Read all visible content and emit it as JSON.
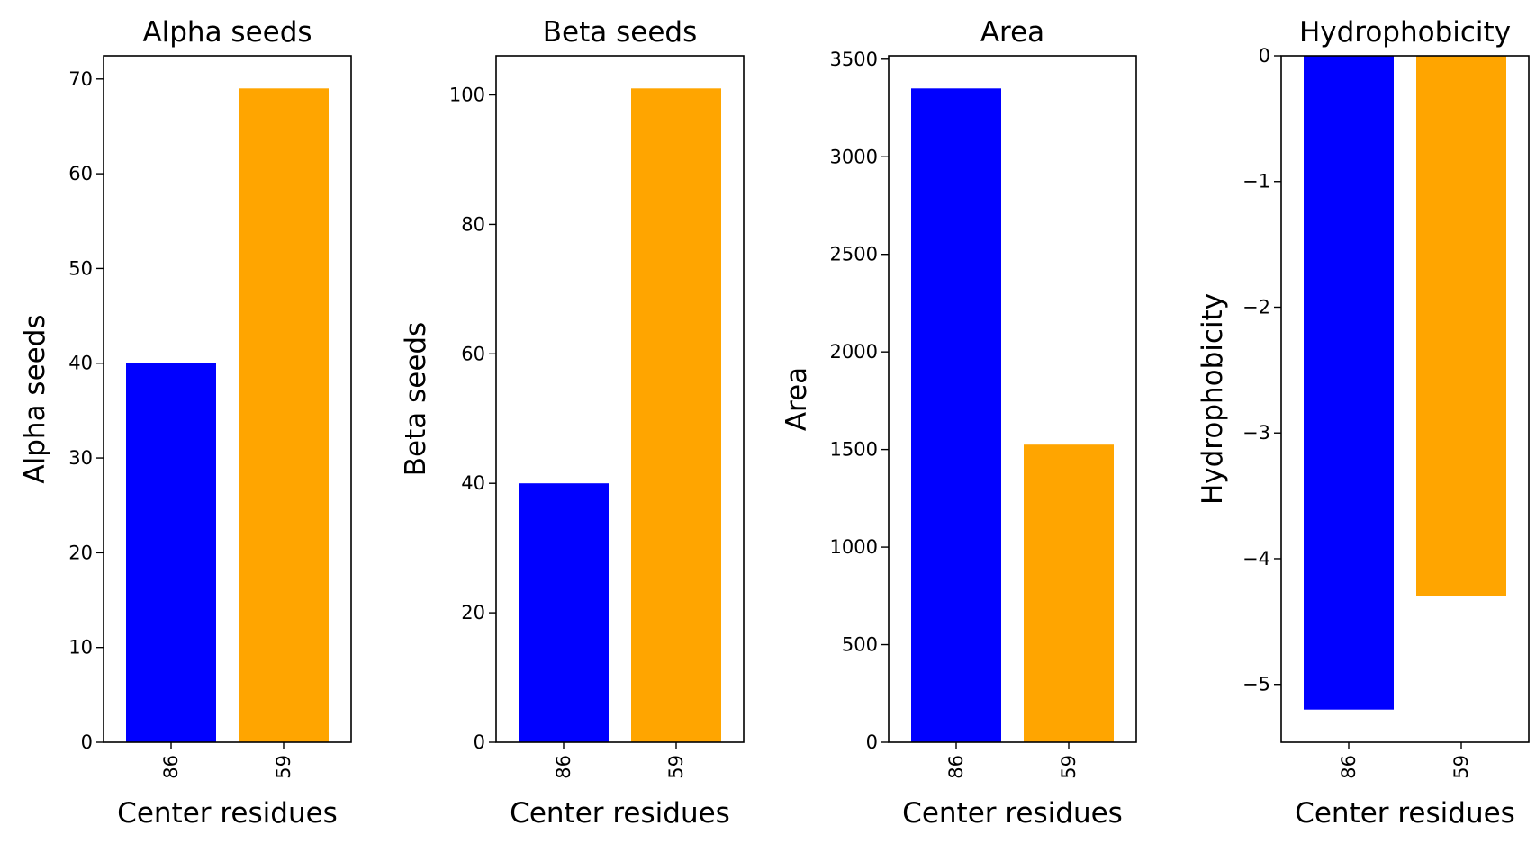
{
  "chart_data": [
    {
      "type": "bar",
      "title": "Alpha seeds",
      "xlabel": "Center residues",
      "ylabel": "Alpha seeds",
      "categories": [
        "86",
        "59"
      ],
      "values": [
        40,
        69
      ],
      "colors": [
        "#0000ff",
        "#ffa500"
      ],
      "ylim": [
        0,
        72.45
      ],
      "yticks": [
        0,
        10,
        20,
        30,
        40,
        50,
        60,
        70
      ],
      "grid": false
    },
    {
      "type": "bar",
      "title": "Beta seeds",
      "xlabel": "Center residues",
      "ylabel": "Beta seeds",
      "categories": [
        "86",
        "59"
      ],
      "values": [
        40,
        101
      ],
      "colors": [
        "#0000ff",
        "#ffa500"
      ],
      "ylim": [
        0,
        106.05
      ],
      "yticks": [
        0,
        20,
        40,
        60,
        80,
        100
      ],
      "grid": false
    },
    {
      "type": "bar",
      "title": "Area",
      "xlabel": "Center residues",
      "ylabel": "Area",
      "categories": [
        "86",
        "59"
      ],
      "values": [
        3350,
        1525
      ],
      "colors": [
        "#0000ff",
        "#ffa500"
      ],
      "ylim": [
        0,
        3517.5
      ],
      "yticks": [
        0,
        500,
        1000,
        1500,
        2000,
        2500,
        3000,
        3500
      ],
      "grid": false
    },
    {
      "type": "bar",
      "title": "Hydrophobicity",
      "xlabel": "Center residues",
      "ylabel": "Hydrophobicity",
      "categories": [
        "86",
        "59"
      ],
      "values": [
        -5.2,
        -4.3
      ],
      "colors": [
        "#0000ff",
        "#ffa500"
      ],
      "ylim": [
        -5.46,
        0
      ],
      "yticks": [
        0,
        -1,
        -2,
        -3,
        -4,
        -5
      ],
      "ytick_labels": [
        "0",
        "−1",
        "−2",
        "−3",
        "−4",
        "−5"
      ],
      "grid": false
    }
  ]
}
